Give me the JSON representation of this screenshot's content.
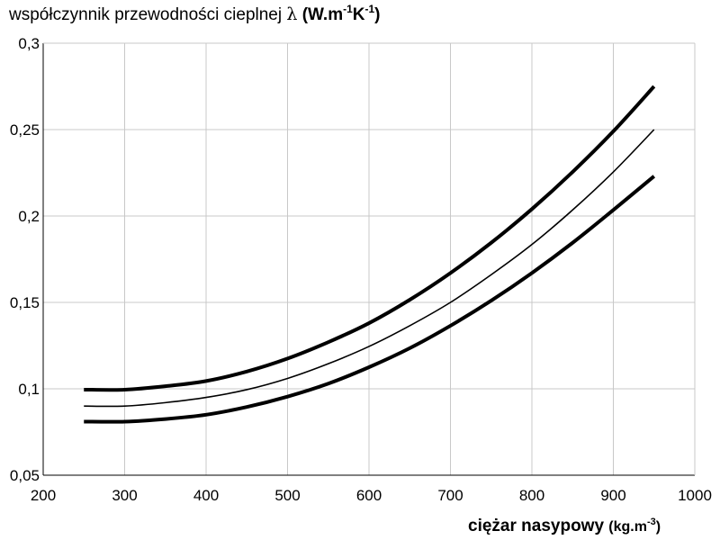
{
  "chart_data": {
    "type": "line",
    "ylabel": {
      "main": "współczynnik przewodności cieplnej ",
      "symbol": "λ",
      "unit_open": " (W.m",
      "unit_exp1": "-1",
      "unit_mid": "K",
      "unit_exp2": "-1",
      "unit_close": ")"
    },
    "xlabel": {
      "main": "ciężar nasypowy ",
      "unit_open": "(kg.m",
      "unit_exp": "-3",
      "unit_close": ")"
    },
    "xlim": [
      200,
      1000
    ],
    "ylim": [
      0.05,
      0.3
    ],
    "grid": true,
    "x_ticks": [
      200,
      300,
      400,
      500,
      600,
      700,
      800,
      900,
      1000
    ],
    "x_tick_labels": [
      "200",
      "300",
      "400",
      "500",
      "600",
      "700",
      "800",
      "900",
      "1000"
    ],
    "y_ticks": [
      0.05,
      0.1,
      0.15,
      0.2,
      0.25,
      0.3
    ],
    "y_tick_labels": [
      "0,05",
      "0,1",
      "0,15",
      "0,2",
      "0,25",
      "0,3"
    ],
    "series": [
      {
        "style": "thick",
        "x": [
          250,
          300,
          350,
          400,
          450,
          500,
          550,
          600,
          650,
          700,
          750,
          800,
          850,
          900,
          950
        ],
        "y": [
          0.0995,
          0.0995,
          0.1015,
          0.1045,
          0.11,
          0.1175,
          0.127,
          0.138,
          0.1515,
          0.167,
          0.1845,
          0.204,
          0.2255,
          0.249,
          0.275
        ]
      },
      {
        "style": "thin",
        "x": [
          250,
          300,
          350,
          400,
          450,
          500,
          550,
          600,
          650,
          700,
          750,
          800,
          850,
          900,
          950
        ],
        "y": [
          0.09,
          0.09,
          0.092,
          0.095,
          0.0995,
          0.106,
          0.1145,
          0.1245,
          0.1365,
          0.15,
          0.166,
          0.1835,
          0.2035,
          0.2255,
          0.25
        ]
      },
      {
        "style": "thick",
        "x": [
          250,
          300,
          350,
          400,
          450,
          500,
          550,
          600,
          650,
          700,
          750,
          800,
          850,
          900,
          950
        ],
        "y": [
          0.081,
          0.081,
          0.0825,
          0.085,
          0.0895,
          0.0955,
          0.103,
          0.1125,
          0.1235,
          0.1365,
          0.151,
          0.167,
          0.1845,
          0.2035,
          0.223
        ]
      }
    ]
  }
}
